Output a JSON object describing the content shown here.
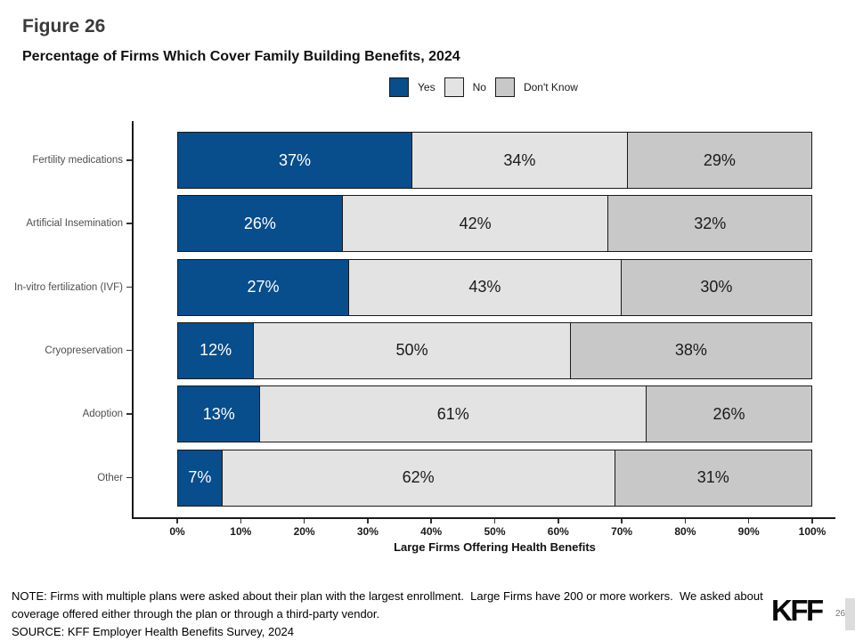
{
  "figure_label": "Figure 26",
  "title": "Percentage of Firms Which Cover Family Building Benefits, 2024",
  "chart_data": {
    "type": "bar",
    "orientation": "horizontal",
    "stacked": true,
    "title": "Percentage of Firms Which Cover Family Building Benefits, 2024",
    "categories": [
      "Fertility medications",
      "Artificial Insemination",
      "In-vitro fertilization (IVF)",
      "Cryopreservation",
      "Adoption",
      "Other"
    ],
    "series": [
      {
        "name": "Yes",
        "values": [
          37,
          26,
          27,
          12,
          13,
          7
        ],
        "color": "#084d8c",
        "label_color": "#ffffff"
      },
      {
        "name": "No",
        "values": [
          34,
          42,
          43,
          50,
          61,
          62
        ],
        "color": "#e3e3e3",
        "label_color": "#1a1a1a"
      },
      {
        "name": "Don't Know",
        "values": [
          29,
          32,
          30,
          38,
          26,
          31
        ],
        "color": "#c8c8c8",
        "label_color": "#1a1a1a"
      }
    ],
    "value_suffix": "%",
    "xlabel": "Large Firms Offering Health Benefits",
    "ylabel": "",
    "xlim": [
      0,
      100
    ],
    "x_ticks": [
      "0%",
      "10%",
      "20%",
      "30%",
      "40%",
      "50%",
      "60%",
      "70%",
      "80%",
      "90%",
      "100%"
    ],
    "grid": false,
    "legend_position": "top",
    "legend": [
      {
        "label": "Yes",
        "color": "#084d8c"
      },
      {
        "label": "No",
        "color": "#e3e3e3"
      },
      {
        "label": "Don't Know",
        "color": "#c8c8c8"
      }
    ],
    "bar_border_color": "#1a1a1a"
  },
  "notes": {
    "note": "NOTE: Firms with multiple plans were asked about their plan with the largest enrollment.  Large Firms have 200 or more workers.  We asked about coverage offered either through the plan or through a third-party vendor.",
    "source": "SOURCE: KFF Employer Health Benefits Survey, 2024"
  },
  "footer": {
    "logo": "KFF",
    "page_number": "26"
  }
}
